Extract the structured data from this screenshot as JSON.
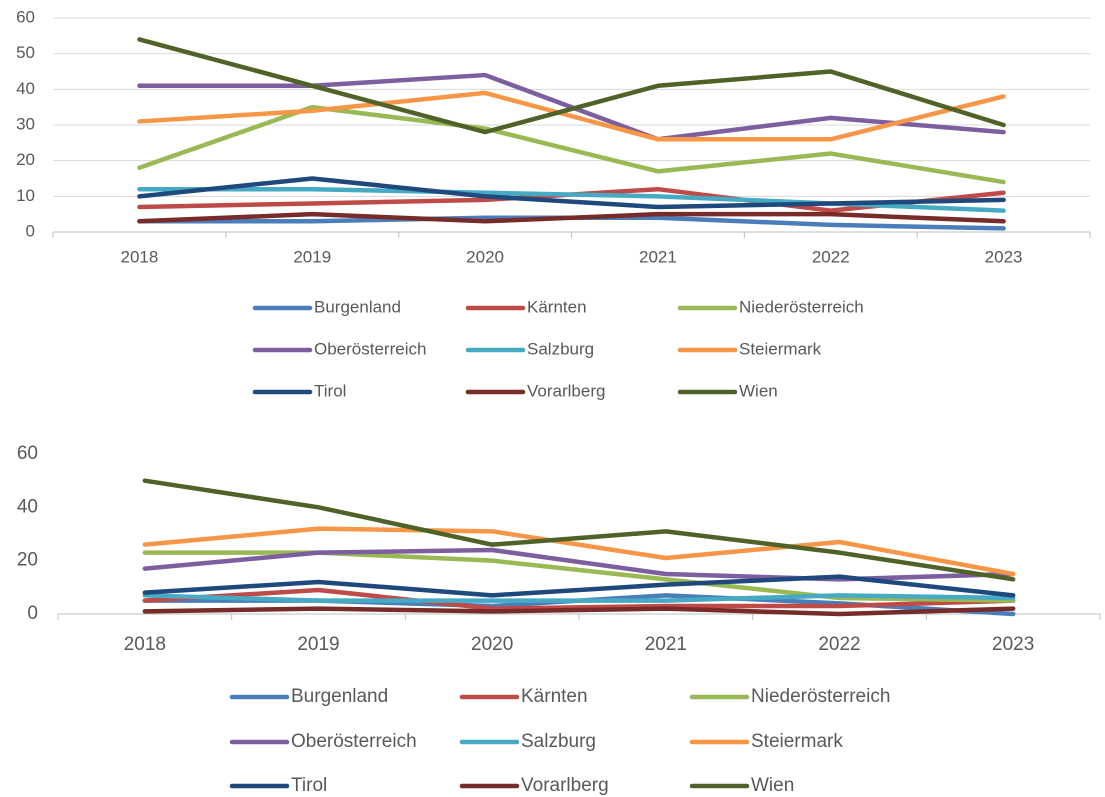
{
  "chart_data": [
    {
      "type": "line",
      "categories": [
        "2018",
        "2019",
        "2020",
        "2021",
        "2022",
        "2023"
      ],
      "ylim": [
        0,
        60
      ],
      "yticks": [
        0,
        10,
        20,
        30,
        40,
        50,
        60
      ],
      "grid": true,
      "series": [
        {
          "name": "Burgenland",
          "color": "#4a7ebb",
          "values": [
            3,
            3,
            4,
            4,
            2,
            1
          ]
        },
        {
          "name": "Kärnten",
          "color": "#be4b48",
          "values": [
            7,
            8,
            9,
            12,
            6,
            11
          ]
        },
        {
          "name": "Niederösterreich",
          "color": "#98b954",
          "values": [
            18,
            35,
            29,
            17,
            22,
            14
          ]
        },
        {
          "name": "Oberösterreich",
          "color": "#7d5fa0",
          "values": [
            41,
            41,
            44,
            26,
            32,
            28
          ]
        },
        {
          "name": "Salzburg",
          "color": "#46aac5",
          "values": [
            12,
            12,
            11,
            10,
            8,
            6
          ]
        },
        {
          "name": "Steiermark",
          "color": "#f79646",
          "values": [
            31,
            34,
            39,
            26,
            26,
            38
          ]
        },
        {
          "name": "Tirol",
          "color": "#1f497d",
          "values": [
            10,
            15,
            10,
            7,
            8,
            9
          ]
        },
        {
          "name": "Vorarlberg",
          "color": "#772c2a",
          "values": [
            3,
            5,
            3,
            5,
            5,
            3
          ]
        },
        {
          "name": "Wien",
          "color": "#4f6228",
          "values": [
            54,
            41,
            28,
            41,
            45,
            30
          ]
        }
      ]
    },
    {
      "type": "line",
      "categories": [
        "2018",
        "2019",
        "2020",
        "2021",
        "2022",
        "2023"
      ],
      "ylim": [
        0,
        60
      ],
      "yticks": [
        0,
        20,
        40,
        60
      ],
      "grid": false,
      "series": [
        {
          "name": "Burgenland",
          "color": "#4a7ebb",
          "values": [
            5,
            5,
            3,
            7,
            4,
            0
          ]
        },
        {
          "name": "Kärnten",
          "color": "#be4b48",
          "values": [
            5,
            9,
            2,
            3,
            3,
            5
          ]
        },
        {
          "name": "Niederösterreich",
          "color": "#98b954",
          "values": [
            23,
            23,
            20,
            13,
            6,
            5
          ]
        },
        {
          "name": "Oberösterreich",
          "color": "#7d5fa0",
          "values": [
            17,
            23,
            24,
            15,
            13,
            15
          ]
        },
        {
          "name": "Salzburg",
          "color": "#46aac5",
          "values": [
            7,
            5,
            5,
            5,
            7,
            6
          ]
        },
        {
          "name": "Steiermark",
          "color": "#f79646",
          "values": [
            26,
            32,
            31,
            21,
            27,
            15
          ]
        },
        {
          "name": "Tirol",
          "color": "#1f497d",
          "values": [
            8,
            12,
            7,
            11,
            14,
            7
          ]
        },
        {
          "name": "Vorarlberg",
          "color": "#772c2a",
          "values": [
            1,
            2,
            1,
            2,
            0,
            2
          ]
        },
        {
          "name": "Wien",
          "color": "#4f6228",
          "values": [
            50,
            40,
            26,
            31,
            23,
            13
          ]
        }
      ]
    }
  ]
}
